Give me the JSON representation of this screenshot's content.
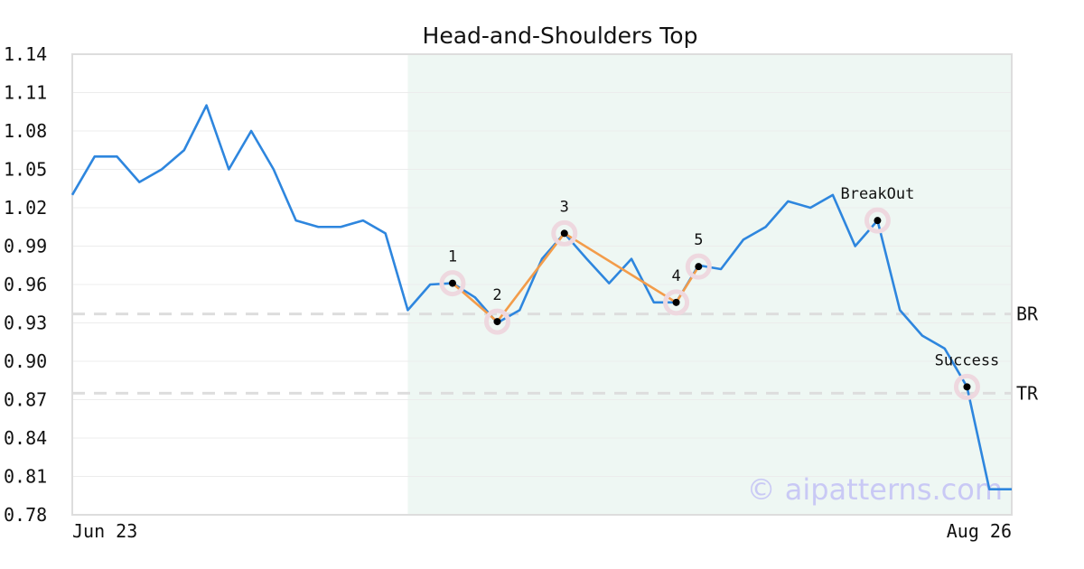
{
  "chart_data": {
    "type": "line",
    "title": "Head-and-Shoulders Top",
    "xlabel": "",
    "ylabel": "",
    "ylim": [
      0.78,
      1.14
    ],
    "yticks": [
      "1.14",
      "1.11",
      "1.08",
      "1.05",
      "1.02",
      "0.99",
      "0.96",
      "0.93",
      "0.90",
      "0.87",
      "0.84",
      "0.81",
      "0.78"
    ],
    "x_labels": {
      "start": "Jun 23",
      "end": "Aug 26"
    },
    "grid": true,
    "colors": {
      "price": "#2e86de",
      "pattern": "#f39c4a",
      "region": "#eef7f3",
      "marker_halo": "#eed8df",
      "level_line": "#dddddd",
      "watermark": "#c9c9f5"
    },
    "series": [
      {
        "values": [
          1.03,
          1.06,
          1.06,
          1.04,
          1.05,
          1.065,
          1.1,
          1.05,
          1.08,
          1.05,
          1.01,
          1.005,
          1.005,
          1.01,
          1.0,
          0.94,
          0.96,
          0.961,
          0.95,
          0.93,
          0.94,
          0.98,
          1.0,
          0.98,
          0.961,
          0.98,
          0.946,
          0.946,
          0.975,
          0.972,
          0.995,
          1.005,
          1.025,
          1.02,
          1.03,
          0.99,
          1.01,
          0.94,
          0.92,
          0.91,
          0.88,
          0.8,
          0.8
        ]
      }
    ],
    "highlight_region": {
      "x_start": 15,
      "x_end": 42
    },
    "pattern_points": [
      {
        "label": "1",
        "x": 17,
        "y": 0.961
      },
      {
        "label": "2",
        "x": 19,
        "y": 0.931
      },
      {
        "label": "3",
        "x": 22,
        "y": 1.0
      },
      {
        "label": "4",
        "x": 27,
        "y": 0.946
      },
      {
        "label": "5",
        "x": 28,
        "y": 0.974
      }
    ],
    "markers": [
      {
        "label": "BreakOut",
        "x": 36,
        "y": 1.01
      },
      {
        "label": "Success",
        "x": 40,
        "y": 0.88
      }
    ],
    "levels": [
      {
        "label": "BR",
        "y": 0.937
      },
      {
        "label": "TR",
        "y": 0.875
      }
    ],
    "watermark": "© aipatterns.com"
  }
}
